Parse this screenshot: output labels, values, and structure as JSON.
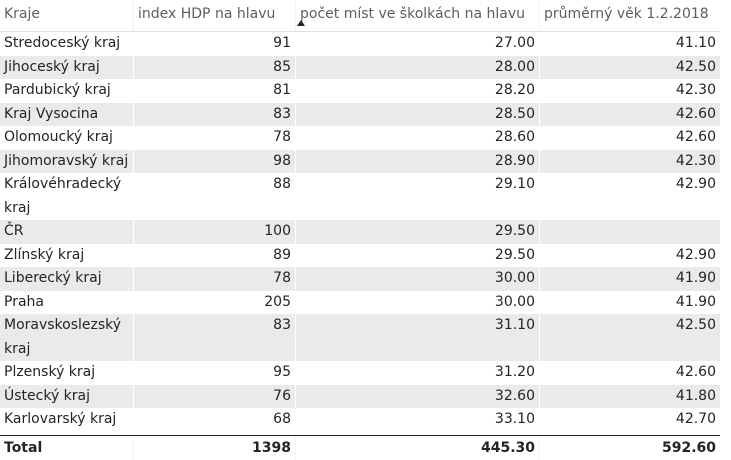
{
  "table": {
    "headers": [
      "Kraje",
      "index HDP na hlavu",
      "počet míst ve školkách na hlavu",
      "průměrný věk 1.2.2018"
    ],
    "rows": [
      {
        "kraj": "Stredoceský kraj",
        "hdp": "91",
        "skolky": "27.00",
        "vek": "41.10"
      },
      {
        "kraj": "Jihoceský kraj",
        "hdp": "85",
        "skolky": "28.00",
        "vek": "42.50"
      },
      {
        "kraj": "Pardubický kraj",
        "hdp": "81",
        "skolky": "28.20",
        "vek": "42.30"
      },
      {
        "kraj": "Kraj Vysocina",
        "hdp": "83",
        "skolky": "28.50",
        "vek": "42.60"
      },
      {
        "kraj": "Olomoucký kraj",
        "hdp": "78",
        "skolky": "28.60",
        "vek": "42.60"
      },
      {
        "kraj": "Jihomoravský kraj",
        "hdp": "98",
        "skolky": "28.90",
        "vek": "42.30"
      },
      {
        "kraj": "Královéhradecký kraj",
        "hdp": "88",
        "skolky": "29.10",
        "vek": "42.90"
      },
      {
        "kraj": "ČR",
        "hdp": "100",
        "skolky": "29.50",
        "vek": ""
      },
      {
        "kraj": "Zlínský kraj",
        "hdp": "89",
        "skolky": "29.50",
        "vek": "42.90"
      },
      {
        "kraj": "Liberecký kraj",
        "hdp": "78",
        "skolky": "30.00",
        "vek": "41.90"
      },
      {
        "kraj": "Praha",
        "hdp": "205",
        "skolky": "30.00",
        "vek": "41.90"
      },
      {
        "kraj": "Moravskoslezský kraj",
        "hdp": "83",
        "skolky": "31.10",
        "vek": "42.50"
      },
      {
        "kraj": "Plzenský kraj",
        "hdp": "95",
        "skolky": "31.20",
        "vek": "42.60"
      },
      {
        "kraj": "Ústecký kraj",
        "hdp": "76",
        "skolky": "32.60",
        "vek": "41.80"
      },
      {
        "kraj": "Karlovarský kraj",
        "hdp": "68",
        "skolky": "33.10",
        "vek": "42.70"
      }
    ],
    "total": {
      "label": "Total",
      "hdp": "1398",
      "skolky": "445.30",
      "vek": "592.60"
    }
  }
}
